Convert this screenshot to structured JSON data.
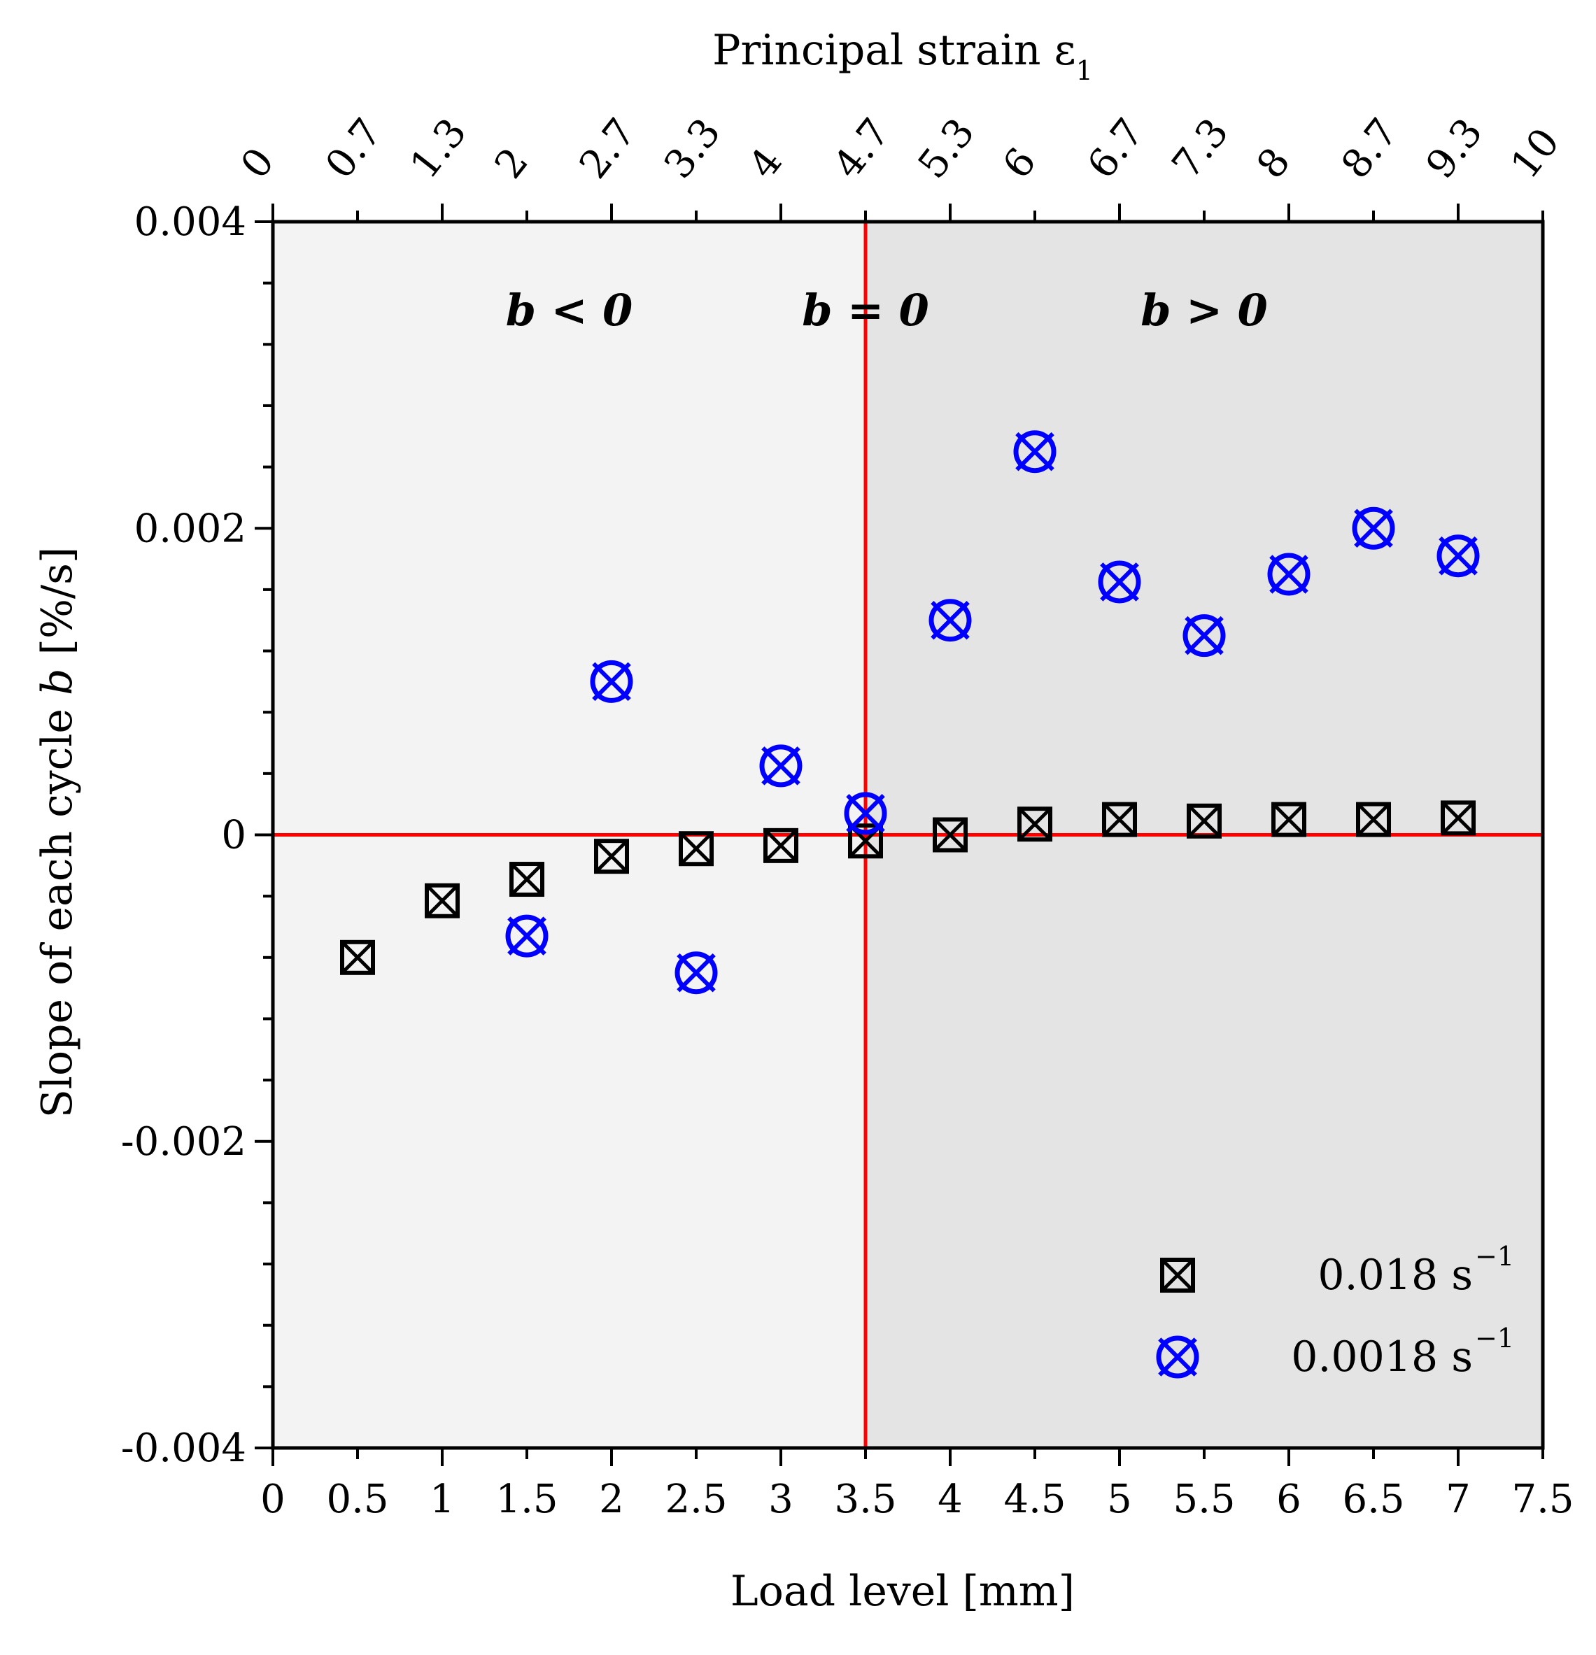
{
  "chart_data": {
    "type": "scatter",
    "xlabel": "Load level [mm]",
    "ylabel_prefix": "Slope of each cycle ",
    "ylabel_var": "b",
    "ylabel_suffix": " [%/s]",
    "top_xlabel_prefix": "Principal strain ε",
    "top_xlabel_sub": "1",
    "xlim": [
      0,
      7.5
    ],
    "ylim": [
      -0.004,
      0.004
    ],
    "x_ticks": [
      0,
      0.5,
      1,
      1.5,
      2,
      2.5,
      3,
      3.5,
      4,
      4.5,
      5,
      5.5,
      6,
      6.5,
      7,
      7.5
    ],
    "x_tick_labels": [
      "0",
      "0.5",
      "1",
      "1.5",
      "2",
      "2.5",
      "3",
      "3.5",
      "4",
      "4.5",
      "5",
      "5.5",
      "6",
      "6.5",
      "7",
      "7.5"
    ],
    "y_ticks": [
      -0.004,
      -0.002,
      0,
      0.002,
      0.004
    ],
    "y_tick_labels": [
      "-0.004",
      "-0.002",
      "0",
      "0.002",
      "0.004"
    ],
    "top_x_tick_labels": [
      "0",
      "0.7",
      "1.3",
      "2",
      "2.7",
      "3.3",
      "4",
      "4.7",
      "5.3",
      "6",
      "6.7",
      "7.3",
      "8",
      "8.7",
      "9.3",
      "10"
    ],
    "threshold_x": 3.5,
    "threshold_y": 0,
    "regions": [
      {
        "label": "b < 0",
        "x": 1.75
      },
      {
        "label": "b = 0",
        "x": 3.5
      },
      {
        "label": "b > 0",
        "x": 5.5
      }
    ],
    "grid": false,
    "legend_position": "bottom-right",
    "series": [
      {
        "name": "0.018 s",
        "name_sup": "−1",
        "marker": "boxed-x",
        "color": "#000000",
        "x": [
          0.5,
          1,
          1.5,
          2,
          2.5,
          3,
          3.5,
          4,
          4.5,
          5,
          5.5,
          6,
          6.5,
          7
        ],
        "y": [
          -0.0008,
          -0.00043,
          -0.00029,
          -0.00014,
          -9e-05,
          -7e-05,
          -4e-05,
          0.0,
          7e-05,
          0.0001,
          9e-05,
          0.0001,
          0.0001,
          0.00011
        ]
      },
      {
        "name": "0.0018 s",
        "name_sup": "−1",
        "marker": "circled-x",
        "color": "#0000ff",
        "x": [
          1.5,
          2,
          2.5,
          3,
          3.5,
          4,
          4.5,
          5,
          5.5,
          6,
          6.5,
          7
        ],
        "y": [
          -0.00066,
          0.001,
          -0.0009,
          0.00045,
          0.00014,
          0.0014,
          0.0025,
          0.00165,
          0.0013,
          0.0017,
          0.002,
          0.00182
        ]
      }
    ],
    "colors": {
      "threshold": "#ff0000",
      "region_left": "#f3f3f3",
      "region_right": "#e4e4e4"
    }
  }
}
